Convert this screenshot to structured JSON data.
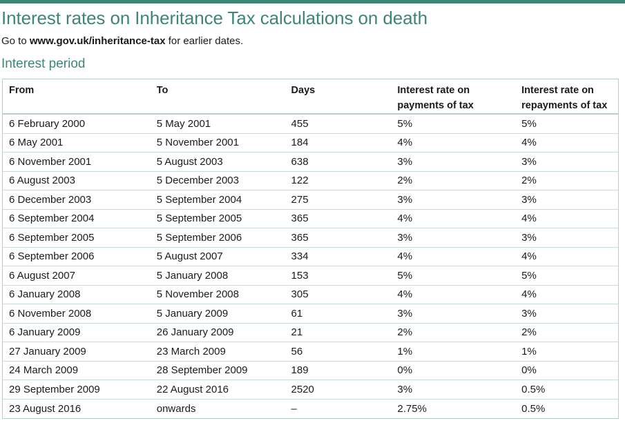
{
  "page": {
    "title": "Interest rates on Inheritance Tax calculations on death",
    "subtitle_prefix": "Go to ",
    "subtitle_link": "www.gov.uk/inheritance-tax",
    "subtitle_suffix": " for earlier dates.",
    "section_heading": "Interest period",
    "accent_color": "#3d8577"
  },
  "table": {
    "headers": {
      "from": "From",
      "to": "To",
      "days": "Days",
      "payments_line1": "Interest rate on",
      "payments_line2": "payments of tax",
      "repayments_line1": "Interest rate on",
      "repayments_line2": "repayments of tax"
    },
    "rows": [
      {
        "from": "6 February 2000",
        "to": "5 May 2001",
        "days": "455",
        "payments": "5%",
        "repayments": "5%"
      },
      {
        "from": "6 May 2001",
        "to": "5 November 2001",
        "days": "184",
        "payments": "4%",
        "repayments": "4%"
      },
      {
        "from": "6 November 2001",
        "to": "5 August 2003",
        "days": "638",
        "payments": "3%",
        "repayments": "3%"
      },
      {
        "from": "6 August 2003",
        "to": "5 December 2003",
        "days": "122",
        "payments": "2%",
        "repayments": "2%"
      },
      {
        "from": "6 December 2003",
        "to": "5 September 2004",
        "days": "275",
        "payments": "3%",
        "repayments": "3%"
      },
      {
        "from": "6 September 2004",
        "to": "5 September 2005",
        "days": "365",
        "payments": "4%",
        "repayments": "4%"
      },
      {
        "from": "6 September 2005",
        "to": "5 September 2006",
        "days": "365",
        "payments": "3%",
        "repayments": "3%"
      },
      {
        "from": "6 September 2006",
        "to": "5 August 2007",
        "days": "334",
        "payments": "4%",
        "repayments": "4%"
      },
      {
        "from": "6 August 2007",
        "to": "5 January 2008",
        "days": "153",
        "payments": "5%",
        "repayments": "5%"
      },
      {
        "from": "6 January 2008",
        "to": "5 November 2008",
        "days": "305",
        "payments": "4%",
        "repayments": "4%"
      },
      {
        "from": "6 November 2008",
        "to": "5 January 2009",
        "days": "61",
        "payments": "3%",
        "repayments": "3%"
      },
      {
        "from": "6 January 2009",
        "to": "26 January 2009",
        "days": "21",
        "payments": "2%",
        "repayments": "2%"
      },
      {
        "from": "27 January 2009",
        "to": "23 March 2009",
        "days": "56",
        "payments": "1%",
        "repayments": "1%"
      },
      {
        "from": "24 March 2009",
        "to": "28 September 2009",
        "days": "189",
        "payments": "0%",
        "repayments": "0%"
      },
      {
        "from": "29 September 2009",
        "to": "22 August 2016",
        "days": "2520",
        "payments": "3%",
        "repayments": "0.5%"
      },
      {
        "from": "23 August 2016",
        "to": "onwards",
        "days": "–",
        "payments": "2.75%",
        "repayments": "0.5%"
      }
    ]
  }
}
